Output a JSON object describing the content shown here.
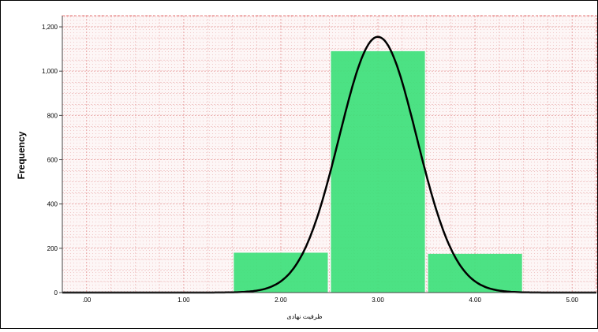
{
  "chart_data": {
    "type": "bar",
    "title": "",
    "xlabel": "ظرفیت نهادی",
    "ylabel": "Frequency",
    "xlim": [
      -0.25,
      5.25
    ],
    "ylim": [
      0,
      1250
    ],
    "x_ticks": [
      0,
      1,
      2,
      3,
      4,
      5
    ],
    "x_tick_labels": [
      ".00",
      "1.00",
      "2.00",
      "3.00",
      "4.00",
      "5.00"
    ],
    "y_ticks": [
      0,
      200,
      400,
      600,
      800,
      1000,
      1200
    ],
    "y_tick_labels": [
      "0",
      "200",
      "400",
      "600",
      "800",
      "1,000",
      "1,200"
    ],
    "bins": [
      {
        "x": 2,
        "value": 180
      },
      {
        "x": 3,
        "value": 1090
      },
      {
        "x": 4,
        "value": 175
      }
    ],
    "normal_curve": {
      "mean": 3.0,
      "peak": 1155,
      "sd": 0.4
    },
    "grid": true,
    "colors": {
      "bar": "#3de07a",
      "curve": "#000000",
      "grid": "#e8a0a0",
      "plot_bg": "#fdf3f3"
    }
  }
}
